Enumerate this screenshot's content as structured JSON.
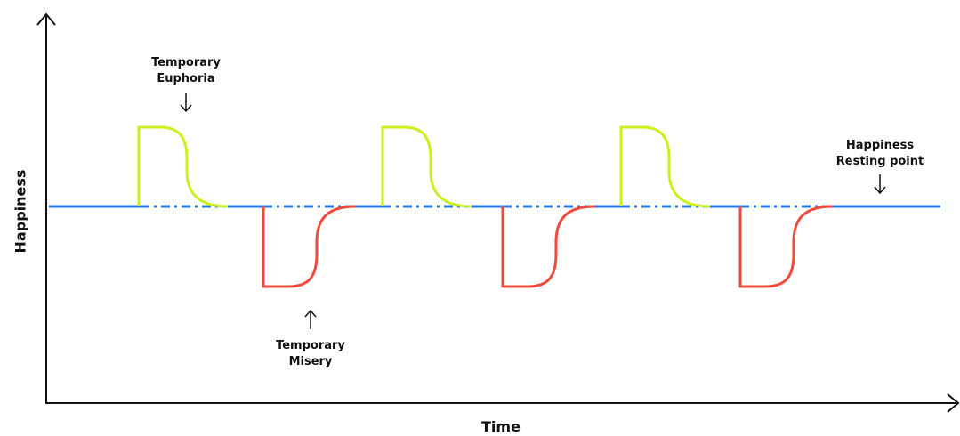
{
  "axes": {
    "x_label": "Time",
    "y_label": "Happiness"
  },
  "annotations": {
    "euphoria": [
      "Temporary",
      "Euphoria"
    ],
    "misery": [
      "Temporary",
      "Misery"
    ],
    "resting": [
      "Happiness",
      "Resting point"
    ]
  },
  "colors": {
    "baseline": "#2277E8",
    "euphoria": "#C9F21C",
    "misery": "#F04A3C",
    "axis": "#111111"
  }
}
